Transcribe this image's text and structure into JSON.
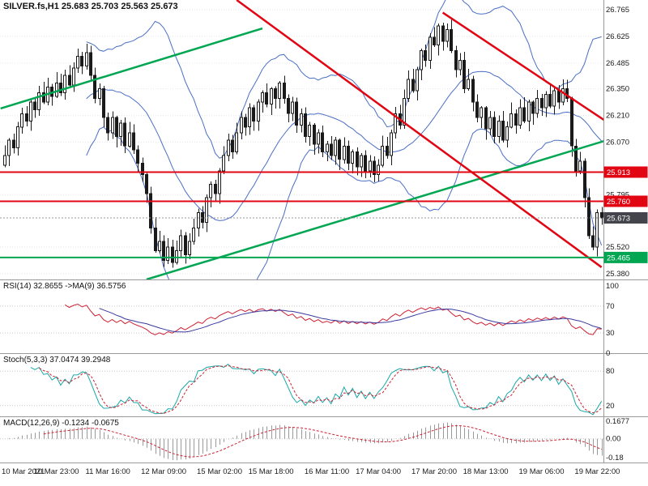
{
  "header": {
    "ohlc_label": "SILVER.fs,H1 25.683 25.703 25.563 25.673"
  },
  "panels": {
    "rsi": {
      "label": "RSI(14) 32.8655 ->MA(9) 36.5756",
      "ticks": [
        {
          "label": "100",
          "v": 100
        },
        {
          "label": "70",
          "v": 70
        },
        {
          "label": "30",
          "v": 30
        },
        {
          "label": "0",
          "v": 0
        }
      ],
      "levels": [
        70,
        30
      ]
    },
    "stoch": {
      "label": "Stoch(5,3,3) 37.0474 39.2948",
      "ticks": [
        {
          "label": "80",
          "v": 80
        },
        {
          "label": "20",
          "v": 20
        }
      ],
      "levels": [
        80,
        20
      ]
    },
    "macd": {
      "label": "MACD(12,26,9) -0.1234 -0.0675",
      "ticks": [
        {
          "label": "0.1677",
          "v": 0.1677
        },
        {
          "label": "0.00",
          "v": 0
        },
        {
          "label": "-0.18",
          "v": -0.18
        }
      ]
    }
  },
  "chart_data": {
    "type": "candlestick",
    "symbol": "SILVER.fs",
    "timeframe": "H1",
    "last_quote": {
      "open": 25.683,
      "high": 25.703,
      "low": 25.563,
      "close": 25.673
    },
    "price_range": [
      25.35,
      26.816
    ],
    "y_ticks": [
      26.765,
      26.625,
      26.485,
      26.35,
      26.21,
      26.07,
      25.795,
      25.52,
      25.38
    ],
    "closes": [
      26.0,
      26.08,
      26.04,
      26.15,
      26.22,
      26.18,
      26.28,
      26.24,
      26.33,
      26.28,
      26.36,
      26.31,
      26.38,
      26.33,
      26.42,
      26.37,
      26.46,
      26.52,
      26.47,
      26.54,
      26.42,
      26.3,
      26.35,
      26.2,
      26.12,
      26.2,
      26.1,
      26.17,
      26.05,
      26.12,
      26.03,
      25.96,
      25.9,
      25.8,
      25.62,
      25.5,
      25.55,
      25.45,
      25.52,
      25.44,
      25.5,
      25.58,
      25.48,
      25.55,
      25.62,
      25.7,
      25.65,
      25.78,
      25.85,
      25.8,
      25.92,
      26.0,
      26.08,
      26.02,
      26.12,
      26.2,
      26.15,
      26.25,
      26.18,
      26.28,
      26.33,
      26.27,
      26.35,
      26.3,
      26.38,
      26.3,
      26.22,
      26.28,
      26.16,
      26.22,
      26.1,
      26.16,
      26.06,
      26.12,
      26.02,
      26.06,
      26.0,
      26.08,
      25.98,
      26.05,
      25.96,
      26.02,
      25.94,
      26.0,
      25.92,
      25.97,
      25.9,
      25.95,
      26.05,
      26.0,
      26.12,
      26.22,
      26.16,
      26.3,
      26.4,
      26.34,
      26.45,
      26.55,
      26.5,
      26.62,
      26.58,
      26.68,
      26.6,
      26.66,
      26.55,
      26.45,
      26.5,
      26.35,
      26.4,
      26.28,
      26.2,
      26.25,
      26.14,
      26.2,
      26.1,
      26.18,
      26.08,
      26.15,
      26.22,
      26.16,
      26.25,
      26.18,
      26.28,
      26.22,
      26.3,
      26.25,
      26.32,
      26.26,
      26.34,
      26.28,
      26.35,
      26.3,
      26.05,
      25.92,
      25.97,
      25.78,
      25.58,
      25.52,
      25.7,
      25.673
    ],
    "x_labels": [
      {
        "i": 0,
        "label": "10 Mar 2021"
      },
      {
        "i": 12,
        "label": "10 Mar 23:00"
      },
      {
        "i": 24,
        "label": "11 Mar 16:00"
      },
      {
        "i": 37,
        "label": "12 Mar 09:00"
      },
      {
        "i": 50,
        "label": "15 Mar 02:00"
      },
      {
        "i": 62,
        "label": "15 Mar 18:00"
      },
      {
        "i": 75,
        "label": "16 Mar 11:00"
      },
      {
        "i": 87,
        "label": "17 Mar 04:00"
      },
      {
        "i": 100,
        "label": "17 Mar 20:00"
      },
      {
        "i": 112,
        "label": "18 Mar 13:00"
      },
      {
        "i": 125,
        "label": "19 Mar 06:00"
      },
      {
        "i": 138,
        "label": "19 Mar 22:00"
      }
    ],
    "h_lines": [
      {
        "price": 25.913,
        "color": "#e20613",
        "badge": "25.913",
        "style": "solid",
        "width": 2
      },
      {
        "price": 25.76,
        "color": "#e20613",
        "badge": "25.760",
        "style": "solid",
        "width": 2
      },
      {
        "price": 25.465,
        "color": "#00a651",
        "badge": "25.465",
        "style": "solid",
        "width": 2
      },
      {
        "price": 25.673,
        "color": "#999999",
        "badge": "25.673",
        "badge_bg": "#44444c",
        "style": "dotted",
        "width": 1
      }
    ],
    "trend_lines": [
      {
        "i1": 33,
        "p1": 25.35,
        "i2": 150,
        "p2": 26.147,
        "color": "green"
      },
      {
        "i1": -1,
        "p1": 26.247,
        "i2": 60,
        "p2": 26.667,
        "color": "green"
      },
      {
        "i1": 54,
        "p1": 26.816,
        "i2": 139,
        "p2": 25.414,
        "color": "red"
      },
      {
        "i1": 102,
        "p1": 26.75,
        "i2": 150,
        "p2": 26.03,
        "color": "red"
      }
    ],
    "indicators": {
      "bollinger": {
        "period": 20,
        "deviation": 2
      },
      "rsi": {
        "period": 14,
        "ma": 9,
        "value": 32.8655,
        "ma_value": 36.5756
      },
      "stoch": {
        "k": 5,
        "slowing": 3,
        "d": 3,
        "value": 37.0474,
        "signal": 39.2948
      },
      "macd": {
        "fast": 12,
        "slow": 26,
        "signal": 9,
        "value": -0.1234,
        "signal_value": -0.0675
      }
    },
    "colors": {
      "up": "#ffffff",
      "down": "#1a1a1a",
      "outline": "#1a1a1a",
      "bb": "#4a6fc4",
      "rsi": "#cc2233",
      "rsi_ma": "#3a3aa0",
      "stoch": "#18a7a7",
      "stoch_sig": "#cc2233",
      "macd_hist": "#9a9a9a",
      "macd_sig": "#cc2233",
      "line_red": "#e20613",
      "line_green": "#00a651",
      "grid": "#e6e6e6",
      "frame": "#9a9a9a",
      "tick_text": "#1a1a1a"
    }
  }
}
